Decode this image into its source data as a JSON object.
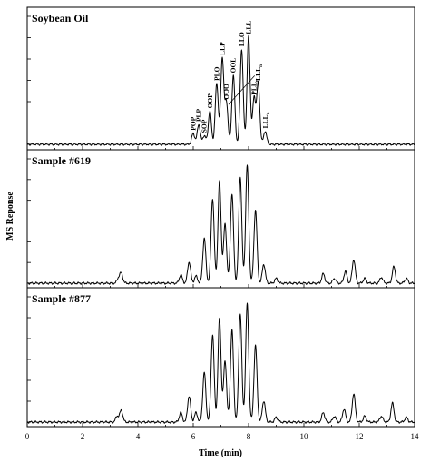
{
  "chart_data": {
    "type": "line",
    "xlabel": "Time (min)",
    "ylabel": "MS Reponse",
    "xlim": [
      0,
      14
    ],
    "xticks": [
      "0",
      "2",
      "4",
      "6",
      "8",
      "10",
      "12",
      "14"
    ],
    "grid": false,
    "panels": [
      {
        "title": "Soybean Oil",
        "peaks": [
          {
            "x": 6.0,
            "h": 0.1,
            "label": "POP"
          },
          {
            "x": 6.2,
            "h": 0.18,
            "label": "PLP"
          },
          {
            "x": 6.4,
            "h": 0.08,
            "label": "SOP"
          },
          {
            "x": 6.6,
            "h": 0.3,
            "label": "OOP"
          },
          {
            "x": 6.85,
            "h": 0.55,
            "label": "PLO"
          },
          {
            "x": 7.05,
            "h": 0.78,
            "label": "LLP"
          },
          {
            "x": 7.2,
            "h": 0.38,
            "label": "OOO"
          },
          {
            "x": 7.45,
            "h": 0.62,
            "label": "OOL"
          },
          {
            "x": 7.75,
            "h": 0.86,
            "label": "LLO"
          },
          {
            "x": 8.0,
            "h": 0.97,
            "label": "LLL"
          },
          {
            "x": 8.2,
            "h": 0.42,
            "label": "PLLn"
          },
          {
            "x": 8.35,
            "h": 0.55,
            "label": "LLLn"
          },
          {
            "x": 8.6,
            "h": 0.12,
            "label": "LLnLn"
          }
        ]
      },
      {
        "title": "Sample #619",
        "peaks": [
          {
            "x": 3.4,
            "h": 0.08
          },
          {
            "x": 3.3,
            "h": 0.04
          },
          {
            "x": 5.55,
            "h": 0.07
          },
          {
            "x": 5.85,
            "h": 0.18
          },
          {
            "x": 6.1,
            "h": 0.06
          },
          {
            "x": 6.4,
            "h": 0.38
          },
          {
            "x": 6.7,
            "h": 0.72
          },
          {
            "x": 6.95,
            "h": 0.86
          },
          {
            "x": 7.15,
            "h": 0.5
          },
          {
            "x": 7.4,
            "h": 0.76
          },
          {
            "x": 7.7,
            "h": 0.9
          },
          {
            "x": 7.95,
            "h": 1.0
          },
          {
            "x": 8.25,
            "h": 0.62
          },
          {
            "x": 8.55,
            "h": 0.16
          },
          {
            "x": 9.0,
            "h": 0.04
          },
          {
            "x": 10.7,
            "h": 0.08
          },
          {
            "x": 11.1,
            "h": 0.04
          },
          {
            "x": 11.5,
            "h": 0.1
          },
          {
            "x": 11.8,
            "h": 0.2
          },
          {
            "x": 12.2,
            "h": 0.04
          },
          {
            "x": 12.8,
            "h": 0.05
          },
          {
            "x": 13.25,
            "h": 0.14
          },
          {
            "x": 13.7,
            "h": 0.04
          }
        ]
      },
      {
        "title": "Sample #877",
        "peaks": [
          {
            "x": 3.4,
            "h": 0.1
          },
          {
            "x": 3.25,
            "h": 0.05
          },
          {
            "x": 5.55,
            "h": 0.08
          },
          {
            "x": 5.85,
            "h": 0.22
          },
          {
            "x": 6.1,
            "h": 0.08
          },
          {
            "x": 6.4,
            "h": 0.42
          },
          {
            "x": 6.7,
            "h": 0.74
          },
          {
            "x": 6.95,
            "h": 0.88
          },
          {
            "x": 7.15,
            "h": 0.52
          },
          {
            "x": 7.4,
            "h": 0.78
          },
          {
            "x": 7.7,
            "h": 0.92
          },
          {
            "x": 7.95,
            "h": 1.0
          },
          {
            "x": 8.25,
            "h": 0.65
          },
          {
            "x": 8.55,
            "h": 0.18
          },
          {
            "x": 9.0,
            "h": 0.04
          },
          {
            "x": 10.7,
            "h": 0.08
          },
          {
            "x": 11.1,
            "h": 0.05
          },
          {
            "x": 11.45,
            "h": 0.11
          },
          {
            "x": 11.8,
            "h": 0.24
          },
          {
            "x": 12.2,
            "h": 0.05
          },
          {
            "x": 12.8,
            "h": 0.05
          },
          {
            "x": 13.2,
            "h": 0.16
          },
          {
            "x": 13.7,
            "h": 0.04
          }
        ]
      }
    ]
  }
}
